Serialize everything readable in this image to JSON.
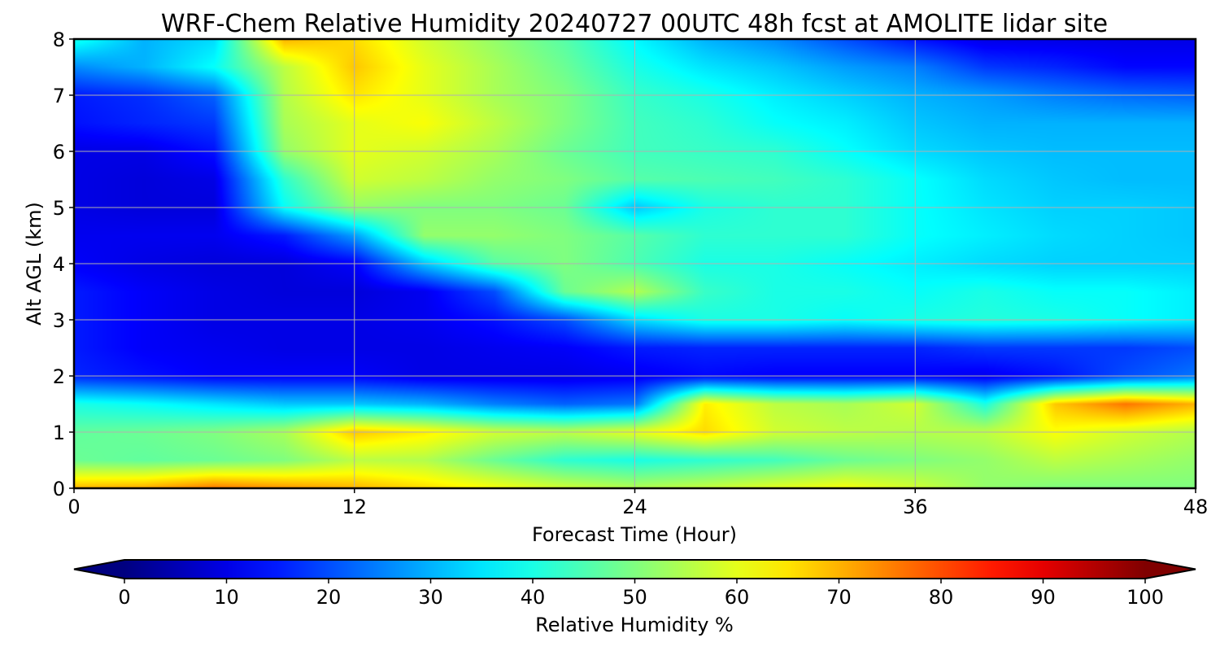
{
  "chart_data": {
    "type": "heatmap",
    "title": "WRF-Chem Relative Humidity 20240727 00UTC 48h fcst at AMOLITE lidar site",
    "xlabel": "Forecast Time (Hour)",
    "ylabel": "Alt AGL (km)",
    "xlim": [
      0,
      48
    ],
    "ylim": [
      0,
      8
    ],
    "xticks": [
      "0",
      "12",
      "24",
      "36",
      "48"
    ],
    "yticks": [
      "0",
      "1",
      "2",
      "3",
      "4",
      "5",
      "6",
      "7",
      "8"
    ],
    "grid": true,
    "x": [
      0,
      3,
      6,
      9,
      12,
      15,
      18,
      21,
      24,
      27,
      30,
      33,
      36,
      39,
      42,
      45,
      48
    ],
    "y": [
      0,
      0.5,
      1,
      1.5,
      2,
      2.5,
      3,
      3.5,
      4,
      4.5,
      5,
      5.5,
      6,
      6.5,
      7,
      7.5,
      8
    ],
    "values": [
      [
        70,
        71,
        76,
        73,
        70,
        66,
        62,
        58,
        55,
        57,
        60,
        62,
        58,
        52,
        50,
        50,
        50
      ],
      [
        48,
        47,
        48,
        50,
        56,
        55,
        48,
        42,
        40,
        42,
        44,
        48,
        50,
        52,
        56,
        54,
        52
      ],
      [
        47,
        48,
        50,
        54,
        68,
        64,
        58,
        56,
        60,
        66,
        58,
        56,
        55,
        56,
        62,
        58,
        55
      ],
      [
        40,
        38,
        35,
        32,
        32,
        30,
        25,
        22,
        24,
        64,
        56,
        54,
        58,
        40,
        68,
        76,
        70
      ],
      [
        16,
        14,
        12,
        12,
        12,
        10,
        10,
        10,
        11,
        13,
        12,
        12,
        12,
        11,
        14,
        20,
        24
      ],
      [
        15,
        12,
        11,
        10,
        10,
        10,
        11,
        12,
        15,
        16,
        16,
        16,
        16,
        18,
        18,
        18,
        20
      ],
      [
        15,
        12,
        10,
        10,
        10,
        11,
        14,
        20,
        34,
        40,
        40,
        38,
        40,
        41,
        40,
        38,
        36
      ],
      [
        15,
        12,
        10,
        9,
        9,
        11,
        20,
        48,
        55,
        43,
        40,
        40,
        38,
        40,
        38,
        38,
        36
      ],
      [
        12,
        10,
        9,
        9,
        12,
        32,
        46,
        50,
        45,
        40,
        40,
        38,
        36,
        34,
        33,
        33,
        33
      ],
      [
        11,
        11,
        11,
        15,
        28,
        52,
        52,
        50,
        46,
        42,
        42,
        42,
        38,
        36,
        34,
        33,
        32
      ],
      [
        10,
        9,
        9,
        38,
        52,
        50,
        50,
        48,
        32,
        40,
        42,
        42,
        38,
        35,
        33,
        33,
        32
      ],
      [
        10,
        9,
        10,
        42,
        58,
        56,
        52,
        50,
        46,
        45,
        44,
        42,
        38,
        34,
        32,
        31,
        31
      ],
      [
        10,
        10,
        14,
        52,
        60,
        58,
        54,
        48,
        44,
        43,
        42,
        38,
        34,
        32,
        31,
        31,
        31
      ],
      [
        14,
        16,
        18,
        54,
        60,
        62,
        56,
        50,
        44,
        42,
        38,
        36,
        32,
        30,
        30,
        30,
        30
      ],
      [
        15,
        17,
        22,
        55,
        65,
        60,
        54,
        50,
        43,
        40,
        36,
        33,
        30,
        28,
        25,
        23,
        22
      ],
      [
        26,
        30,
        38,
        56,
        68,
        60,
        54,
        48,
        40,
        35,
        32,
        28,
        25,
        18,
        16,
        13,
        13
      ],
      [
        40,
        30,
        34,
        70,
        66,
        58,
        52,
        46,
        37,
        30,
        26,
        20,
        14,
        10,
        10,
        10,
        10
      ]
    ],
    "colorbar": {
      "label": "Relative Humidity %",
      "min": 0,
      "max": 100,
      "ticks": [
        "0",
        "10",
        "20",
        "30",
        "40",
        "50",
        "60",
        "70",
        "80",
        "90",
        "100"
      ],
      "extend": "both",
      "colormap": "jet"
    }
  }
}
